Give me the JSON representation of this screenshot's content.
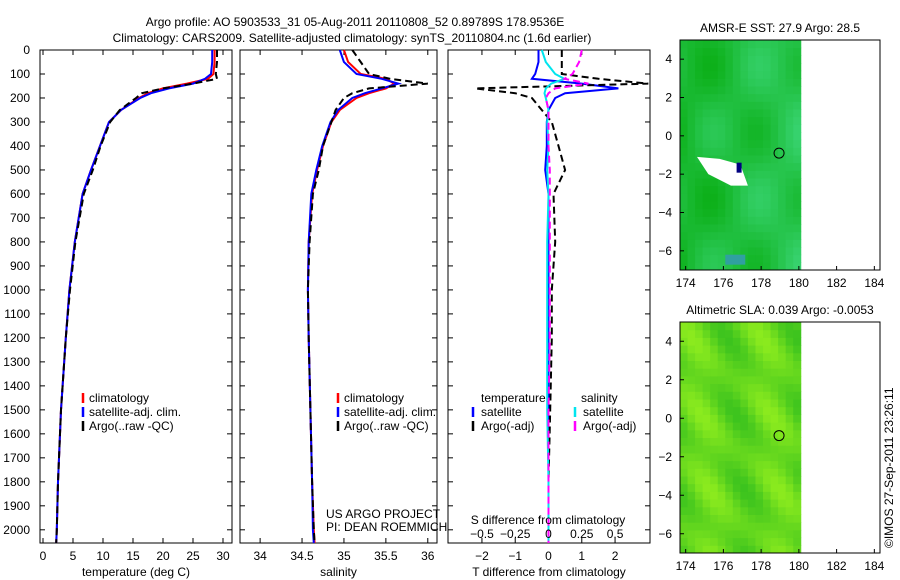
{
  "title_line1": "Argo profile: AO 5903533_31 05-Aug-2011 20110808_52 0.89789S 178.9536E",
  "title_line2": "Climatology: CARS2009. Satellite-adjusted climatology: synTS_20110804.nc (1.6d earlier)",
  "side_stamp": "©IMOS 27-Sep-2011 23:26:11",
  "colors": {
    "climatology": "#ff0000",
    "satellite": "#0000ff",
    "argo": "#000000",
    "sal_satellite": "#00e5ee",
    "sal_argo": "#ff00ff",
    "sst_bg": "#22cc33",
    "sla_bg": "#66dd22"
  },
  "depth_ticks": [
    0,
    100,
    200,
    300,
    400,
    500,
    600,
    700,
    800,
    900,
    1000,
    1100,
    1200,
    1300,
    1400,
    1500,
    1600,
    1700,
    1800,
    1900,
    2000
  ],
  "chart_data": [
    {
      "type": "line",
      "xlabel": "temperature (deg C)",
      "ylabel": "",
      "xlim": [
        -0.5,
        31.5
      ],
      "ylim": [
        2055,
        0
      ],
      "xticks": [
        0,
        5,
        10,
        15,
        20,
        25,
        30
      ],
      "depth": [
        0,
        50,
        100,
        120,
        140,
        160,
        180,
        200,
        250,
        300,
        400,
        500,
        600,
        800,
        1000,
        1200,
        1500,
        1800,
        2000,
        2055
      ],
      "series": [
        {
          "name": "climatology",
          "values": [
            28.6,
            28.6,
            28.4,
            27.5,
            24,
            20,
            17.5,
            16,
            13,
            11,
            9.5,
            8,
            6.6,
            5.3,
            4.4,
            3.8,
            3.0,
            2.5,
            2.3,
            2.2
          ]
        },
        {
          "name": "satellite-adj. clim.",
          "values": [
            28.2,
            28.2,
            28,
            27,
            25,
            21,
            18,
            16.2,
            13,
            11,
            9.5,
            8,
            6.6,
            5.3,
            4.4,
            3.8,
            3.0,
            2.5,
            2.3,
            2.2
          ]
        },
        {
          "name": "Argo(..raw -QC)",
          "values": [
            29,
            29,
            28.8,
            29,
            25,
            20,
            16.5,
            15.5,
            12.8,
            11.2,
            9.6,
            8.3,
            6.8,
            5.4,
            4.5,
            3.8,
            3.0,
            2.5,
            2.3,
            2.2
          ]
        }
      ],
      "legend": [
        "climatology",
        "satellite-adj. clim.",
        "Argo(..raw -QC)"
      ]
    },
    {
      "type": "line",
      "xlabel": "salinity",
      "ylabel": "",
      "xlim": [
        33.76,
        36.11
      ],
      "ylim": [
        2055,
        0
      ],
      "xticks": [
        34,
        34.5,
        35,
        35.5,
        36
      ],
      "depth": [
        0,
        50,
        100,
        120,
        140,
        160,
        180,
        200,
        250,
        300,
        400,
        500,
        600,
        800,
        1000,
        1200,
        1500,
        1800,
        2000,
        2055
      ],
      "series": [
        {
          "name": "climatology",
          "values": [
            35.0,
            35.05,
            35.2,
            35.5,
            35.6,
            35.5,
            35.3,
            35.15,
            34.95,
            34.85,
            34.75,
            34.68,
            34.62,
            34.58,
            34.57,
            34.58,
            34.6,
            34.62,
            34.64,
            34.65
          ]
        },
        {
          "name": "satellite-adj. clim.",
          "values": [
            34.95,
            35.0,
            35.15,
            35.45,
            35.65,
            35.45,
            35.25,
            35.1,
            34.93,
            34.84,
            34.74,
            34.67,
            34.61,
            34.58,
            34.57,
            34.58,
            34.6,
            34.62,
            34.63,
            34.64
          ]
        },
        {
          "name": "Argo(..raw -QC)",
          "values": [
            35.1,
            35.2,
            35.3,
            35.55,
            36.0,
            35.3,
            35.1,
            35.0,
            34.9,
            34.85,
            34.75,
            34.7,
            34.63,
            34.59,
            34.57,
            34.58,
            34.6,
            34.62,
            34.64,
            34.65
          ]
        }
      ],
      "legend": [
        "climatology",
        "satellite-adj. clim.",
        "Argo(..raw -QC)"
      ],
      "annotation": [
        "US ARGO PROJECT",
        "PI: DEAN ROEMMICH"
      ]
    },
    {
      "type": "line",
      "xlabel": "T difference from climatology",
      "ylabel": "",
      "xlim": [
        -3.02,
        3.05
      ],
      "ylim": [
        2055,
        0
      ],
      "xticks": [
        -2,
        -1,
        0,
        1,
        2
      ],
      "top_xlabel": "S difference from climatology",
      "top_xticks": [
        -0.5,
        -0.25,
        0,
        0.25,
        0.5
      ],
      "top_xlim": [
        -0.755,
        0.7625
      ],
      "depth": [
        0,
        50,
        100,
        120,
        140,
        160,
        180,
        200,
        250,
        300,
        400,
        500,
        600,
        800,
        1000,
        1200,
        1500,
        1800,
        2000,
        2055
      ],
      "series": [
        {
          "name": "temperature satellite",
          "axis": "T",
          "values": [
            -0.3,
            -0.3,
            -0.4,
            -0.5,
            1.0,
            2.1,
            0.5,
            0.2,
            0,
            -0.05,
            -0.05,
            -0.1,
            0,
            0,
            0,
            0,
            0,
            0,
            0,
            0
          ]
        },
        {
          "name": "temperature Argo(-adj)",
          "axis": "T",
          "values": [
            0.4,
            0.4,
            0.4,
            1.5,
            3.0,
            -2.2,
            -1.0,
            -0.5,
            -0.2,
            0.1,
            0.3,
            0.5,
            0.15,
            0.2,
            0.1,
            0.1,
            0.05,
            0,
            0,
            0
          ]
        },
        {
          "name": "salinity satellite",
          "axis": "S",
          "values": [
            -0.05,
            -0.02,
            0.05,
            0.12,
            0.02,
            -0.02,
            -0.03,
            -0.02,
            0,
            -0.01,
            0,
            -0.01,
            0,
            -0.01,
            -0.01,
            -0.01,
            -0.01,
            0,
            0,
            0
          ]
        },
        {
          "name": "salinity Argo(-adj)",
          "axis": "S",
          "values": [
            0.25,
            0.23,
            0.18,
            0.12,
            0.3,
            0.05,
            0,
            -0.02,
            0,
            0,
            0,
            0.01,
            0.01,
            0.01,
            0.01,
            0.01,
            0,
            0,
            0,
            0
          ]
        }
      ],
      "legend": {
        "temperature_header": "temperature",
        "salinity_header": "salinity",
        "items": [
          "satellite",
          "Argo(-adj)",
          "satellite",
          "Argo(-adj)"
        ]
      }
    },
    {
      "type": "heatmap",
      "title": "AMSR-E SST: 27.9 Argo: 28.5",
      "xlim": [
        173.7,
        184.3
      ],
      "ylim": [
        -7,
        5
      ],
      "xticks": [
        174,
        176,
        178,
        180,
        182,
        184
      ],
      "yticks": [
        4,
        2,
        0,
        -2,
        -4,
        -6
      ],
      "data_lon_max": 180,
      "profile_location": [
        178.95,
        -0.9
      ]
    },
    {
      "type": "heatmap",
      "title": "Altimetric SLA: 0.039 Argo: -0.0053",
      "xlim": [
        173.7,
        184.3
      ],
      "ylim": [
        -7,
        5
      ],
      "xticks": [
        174,
        176,
        178,
        180,
        182,
        184
      ],
      "yticks": [
        4,
        2,
        0,
        -2,
        -4,
        -6
      ],
      "data_lon_max": 180,
      "profile_location": [
        178.95,
        -0.9
      ]
    }
  ]
}
